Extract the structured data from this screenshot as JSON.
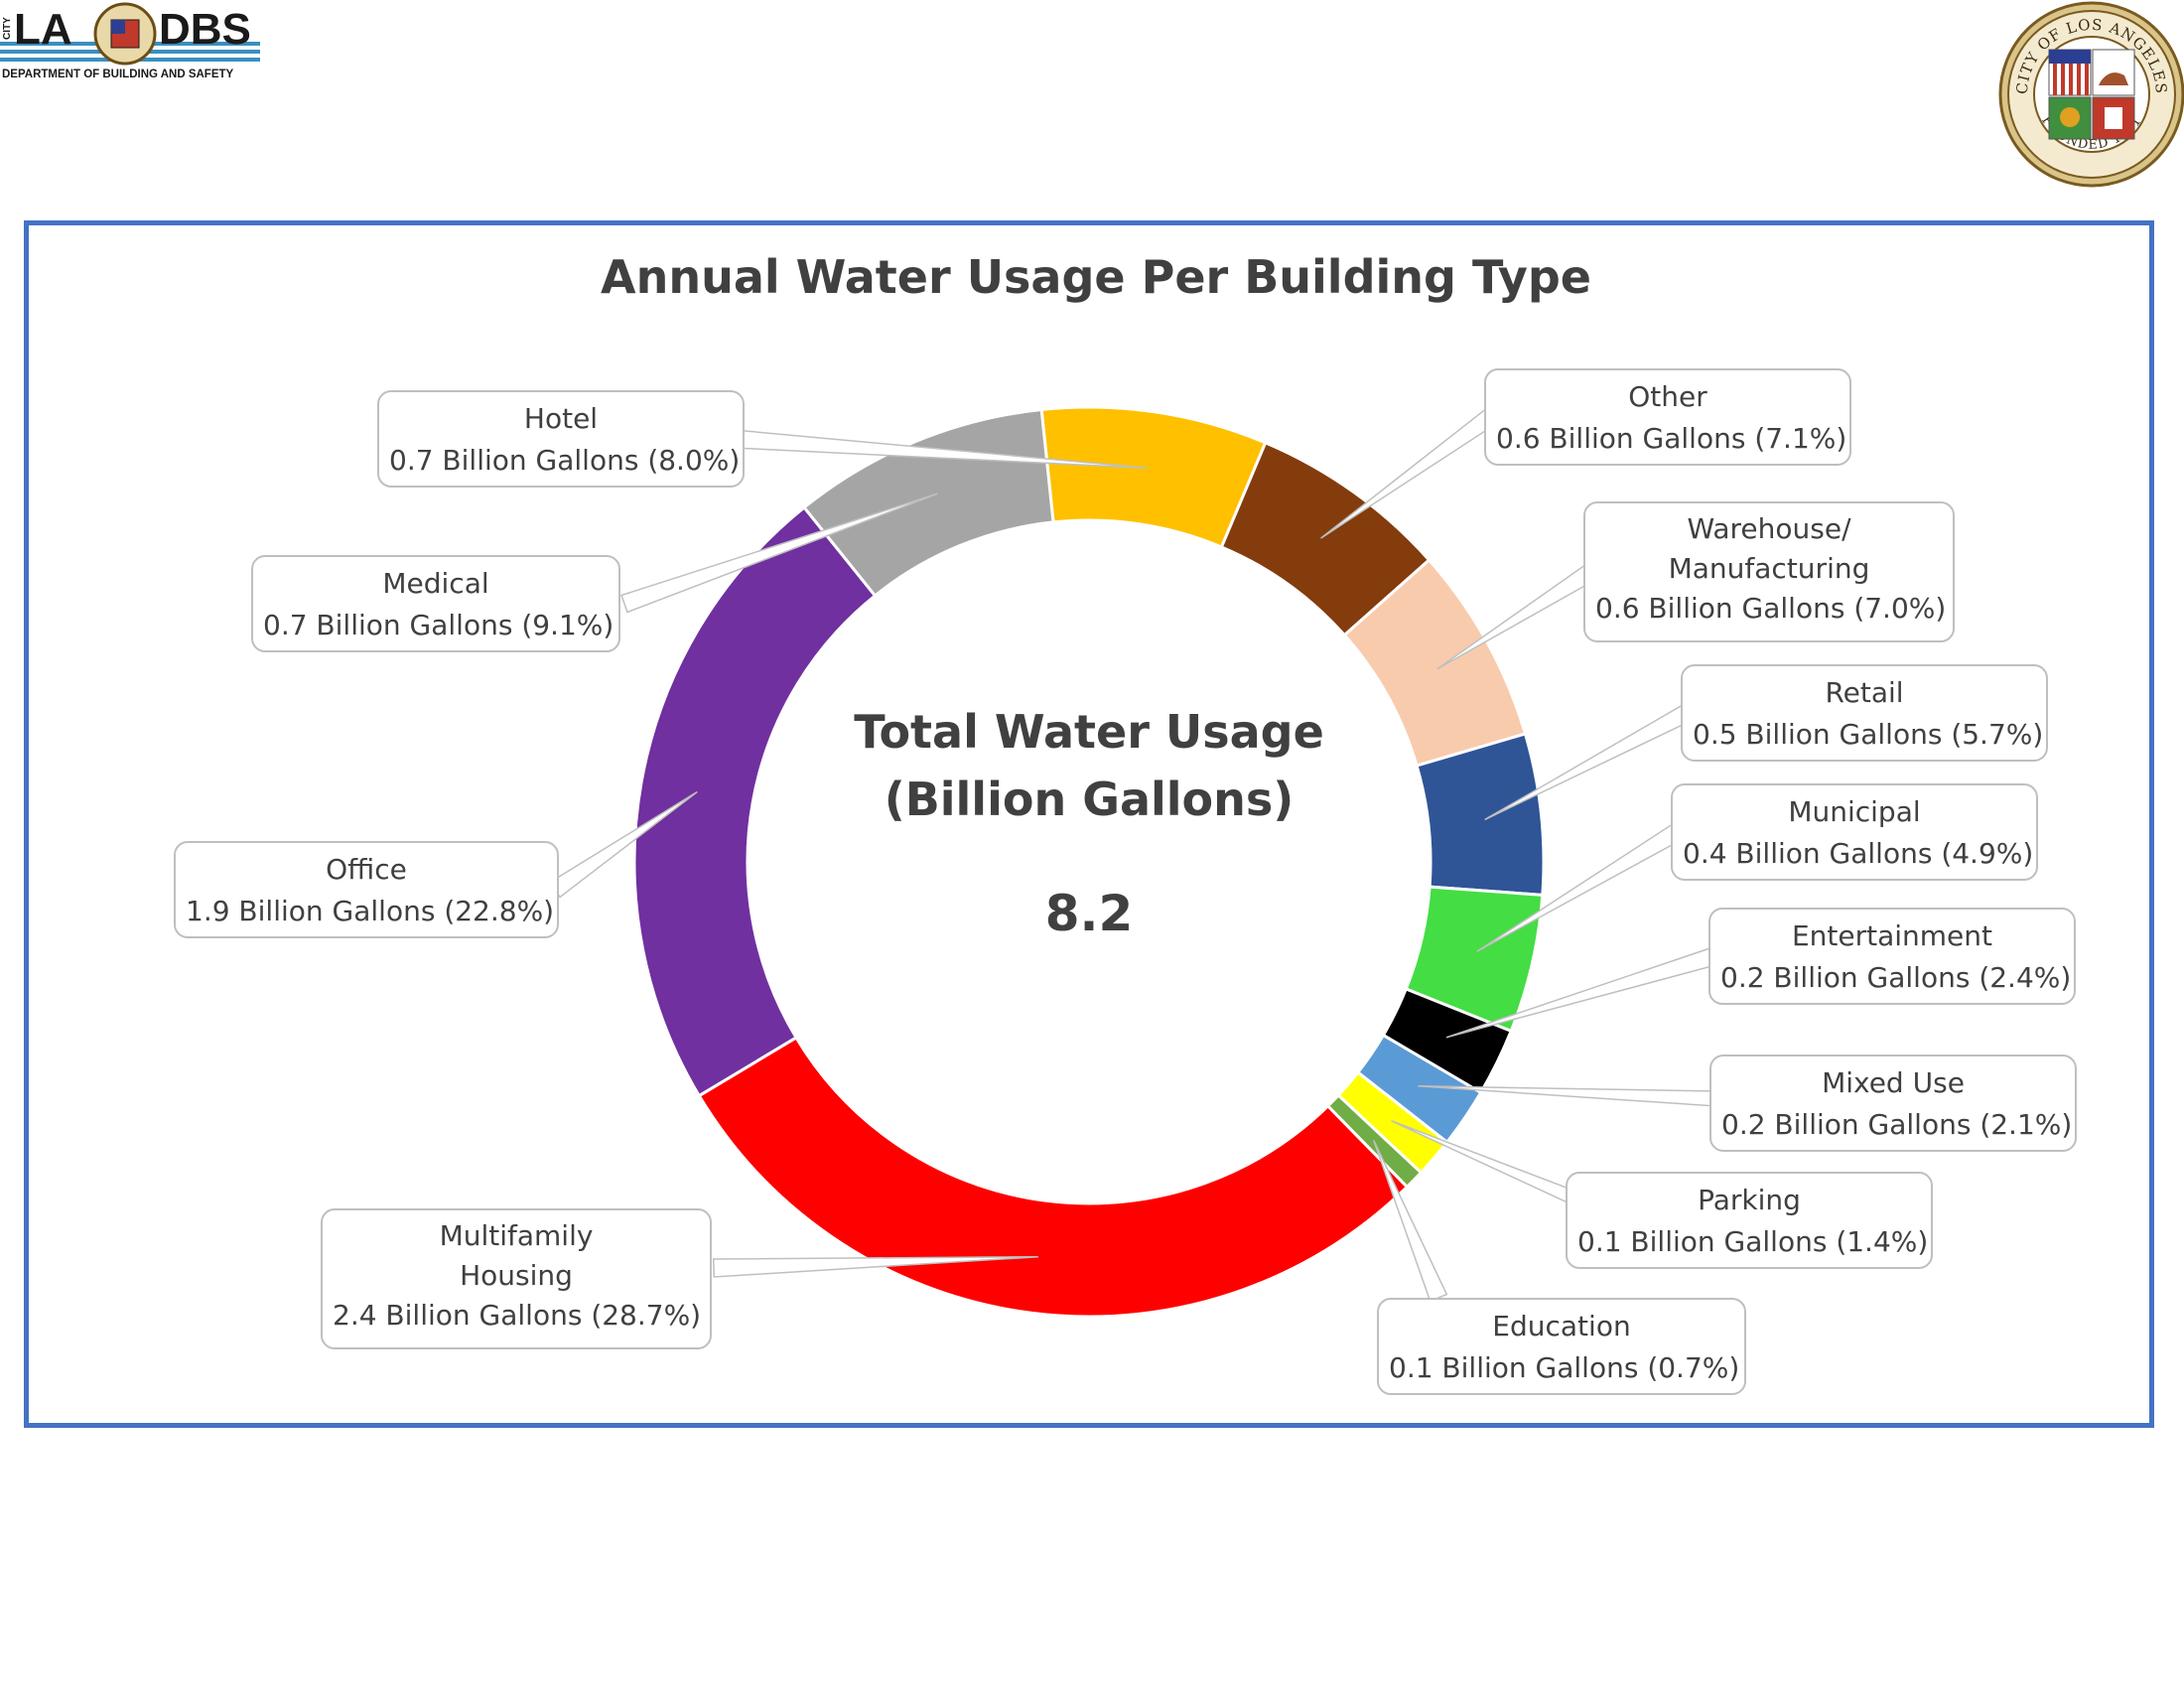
{
  "header": {
    "logo": {
      "city_label": "CITY",
      "wordmark_left": "LA",
      "wordmark_right": "DBS",
      "department": "DEPARTMENT OF BUILDING AND SAFETY"
    },
    "seal": {
      "ring_top": "CITY OF LOS ANGELES",
      "ring_bottom": "FOUNDED 1781"
    }
  },
  "colors": {
    "frame": "#4472c4",
    "title": "#404040",
    "segments": {
      "Multifamily Housing": "#ff0000",
      "Office": "#7030a0",
      "Medical": "#a5a5a5",
      "Hotel": "#ffc000",
      "Other": "#843c0c",
      "Warehouse/ Manufacturing": "#f8cbad",
      "Retail": "#2f5597",
      "Municipal": "#44dd44",
      "Entertainment": "#000000",
      "Mixed Use": "#5b9bd5",
      "Parking": "#ffff00",
      "Education": "#70ad47"
    }
  },
  "chart_data": {
    "type": "pie",
    "donut": true,
    "title": "Annual Water Usage Per Building Type",
    "center_label": {
      "line1": "Total Water Usage",
      "line2": "(Billion Gallons)",
      "value": "8.2"
    },
    "unit": "Billion Gallons",
    "slices": [
      {
        "name": "Hotel",
        "value": 0.7,
        "percent": 8.0,
        "label_value": "0.7 Billion Gallons (8.0%)"
      },
      {
        "name": "Other",
        "value": 0.6,
        "percent": 7.1,
        "label_value": "0.6 Billion Gallons (7.1%)"
      },
      {
        "name": "Warehouse/ Manufacturing",
        "name_lines": [
          "Warehouse/",
          "Manufacturing"
        ],
        "value": 0.6,
        "percent": 7.0,
        "label_value": "0.6 Billion Gallons (7.0%)"
      },
      {
        "name": "Retail",
        "value": 0.5,
        "percent": 5.7,
        "label_value": "0.5 Billion Gallons (5.7%)"
      },
      {
        "name": "Municipal",
        "value": 0.4,
        "percent": 4.9,
        "label_value": "0.4 Billion Gallons (4.9%)"
      },
      {
        "name": "Entertainment",
        "value": 0.2,
        "percent": 2.4,
        "label_value": "0.2 Billion Gallons (2.4%)"
      },
      {
        "name": "Mixed Use",
        "value": 0.2,
        "percent": 2.1,
        "label_value": "0.2 Billion Gallons (2.1%)"
      },
      {
        "name": "Parking",
        "value": 0.1,
        "percent": 1.4,
        "label_value": "0.1 Billion Gallons (1.4%)"
      },
      {
        "name": "Education",
        "value": 0.1,
        "percent": 0.7,
        "label_value": "0.1 Billion Gallons (0.7%)"
      },
      {
        "name": "Multifamily Housing",
        "name_lines": [
          "Multifamily",
          "Housing"
        ],
        "value": 2.4,
        "percent": 28.7,
        "label_value": "2.4 Billion Gallons (28.7%)"
      },
      {
        "name": "Office",
        "value": 1.9,
        "percent": 22.8,
        "label_value": "1.9 Billion Gallons (22.8%)"
      },
      {
        "name": "Medical",
        "value": 0.7,
        "percent": 9.1,
        "label_value": "0.7 Billion Gallons (9.1%)"
      }
    ]
  }
}
